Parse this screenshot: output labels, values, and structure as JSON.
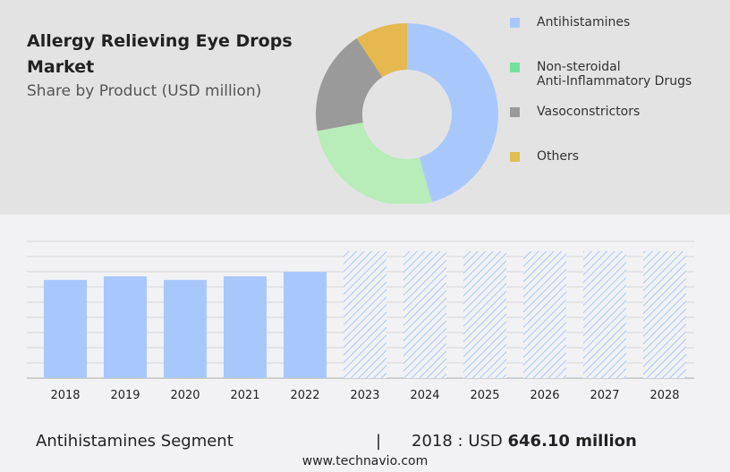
{
  "title": "Allergy Relieving Eye Drops Market",
  "subtitle": "Share by Product (USD million)",
  "footer": {
    "segment": "Antihistamines Segment",
    "separator": "|",
    "year_label": "2018 : USD ",
    "value": "646.10 million",
    "site": "www.technavio.com"
  },
  "chart_data": [
    {
      "type": "pie",
      "donut": true,
      "categories": [
        "Antihistamines",
        "Non-steroidal Anti-Inflammatory Drugs",
        "Vasoconstrictors",
        "Others"
      ],
      "legend": [
        "Antihistamines",
        "Non-steroidal\nAnti-Inflammatory Drugs",
        "Vasoconstrictors",
        "Others"
      ],
      "values": [
        45.6,
        26.5,
        18.6,
        9.3
      ],
      "colors": [
        "#a8c8fc",
        "#b8ecb8",
        "#9a9a9a",
        "#e5b94f"
      ],
      "legend_colors": [
        "#a8c8fc",
        "#72e29a",
        "#9a9a9a",
        "#dfc050"
      ],
      "legend_position": "right"
    },
    {
      "type": "bar",
      "categories": [
        "2018",
        "2019",
        "2020",
        "2021",
        "2022",
        "2023",
        "2024",
        "2025",
        "2026",
        "2027",
        "2028"
      ],
      "values": [
        646.1,
        670,
        646,
        670,
        699,
        null,
        null,
        null,
        null,
        null,
        null
      ],
      "forecast": [
        false,
        false,
        false,
        false,
        false,
        true,
        true,
        true,
        true,
        true,
        true
      ],
      "ylim": [
        0,
        900
      ],
      "grid": true,
      "color": "#a8c8fc"
    }
  ]
}
